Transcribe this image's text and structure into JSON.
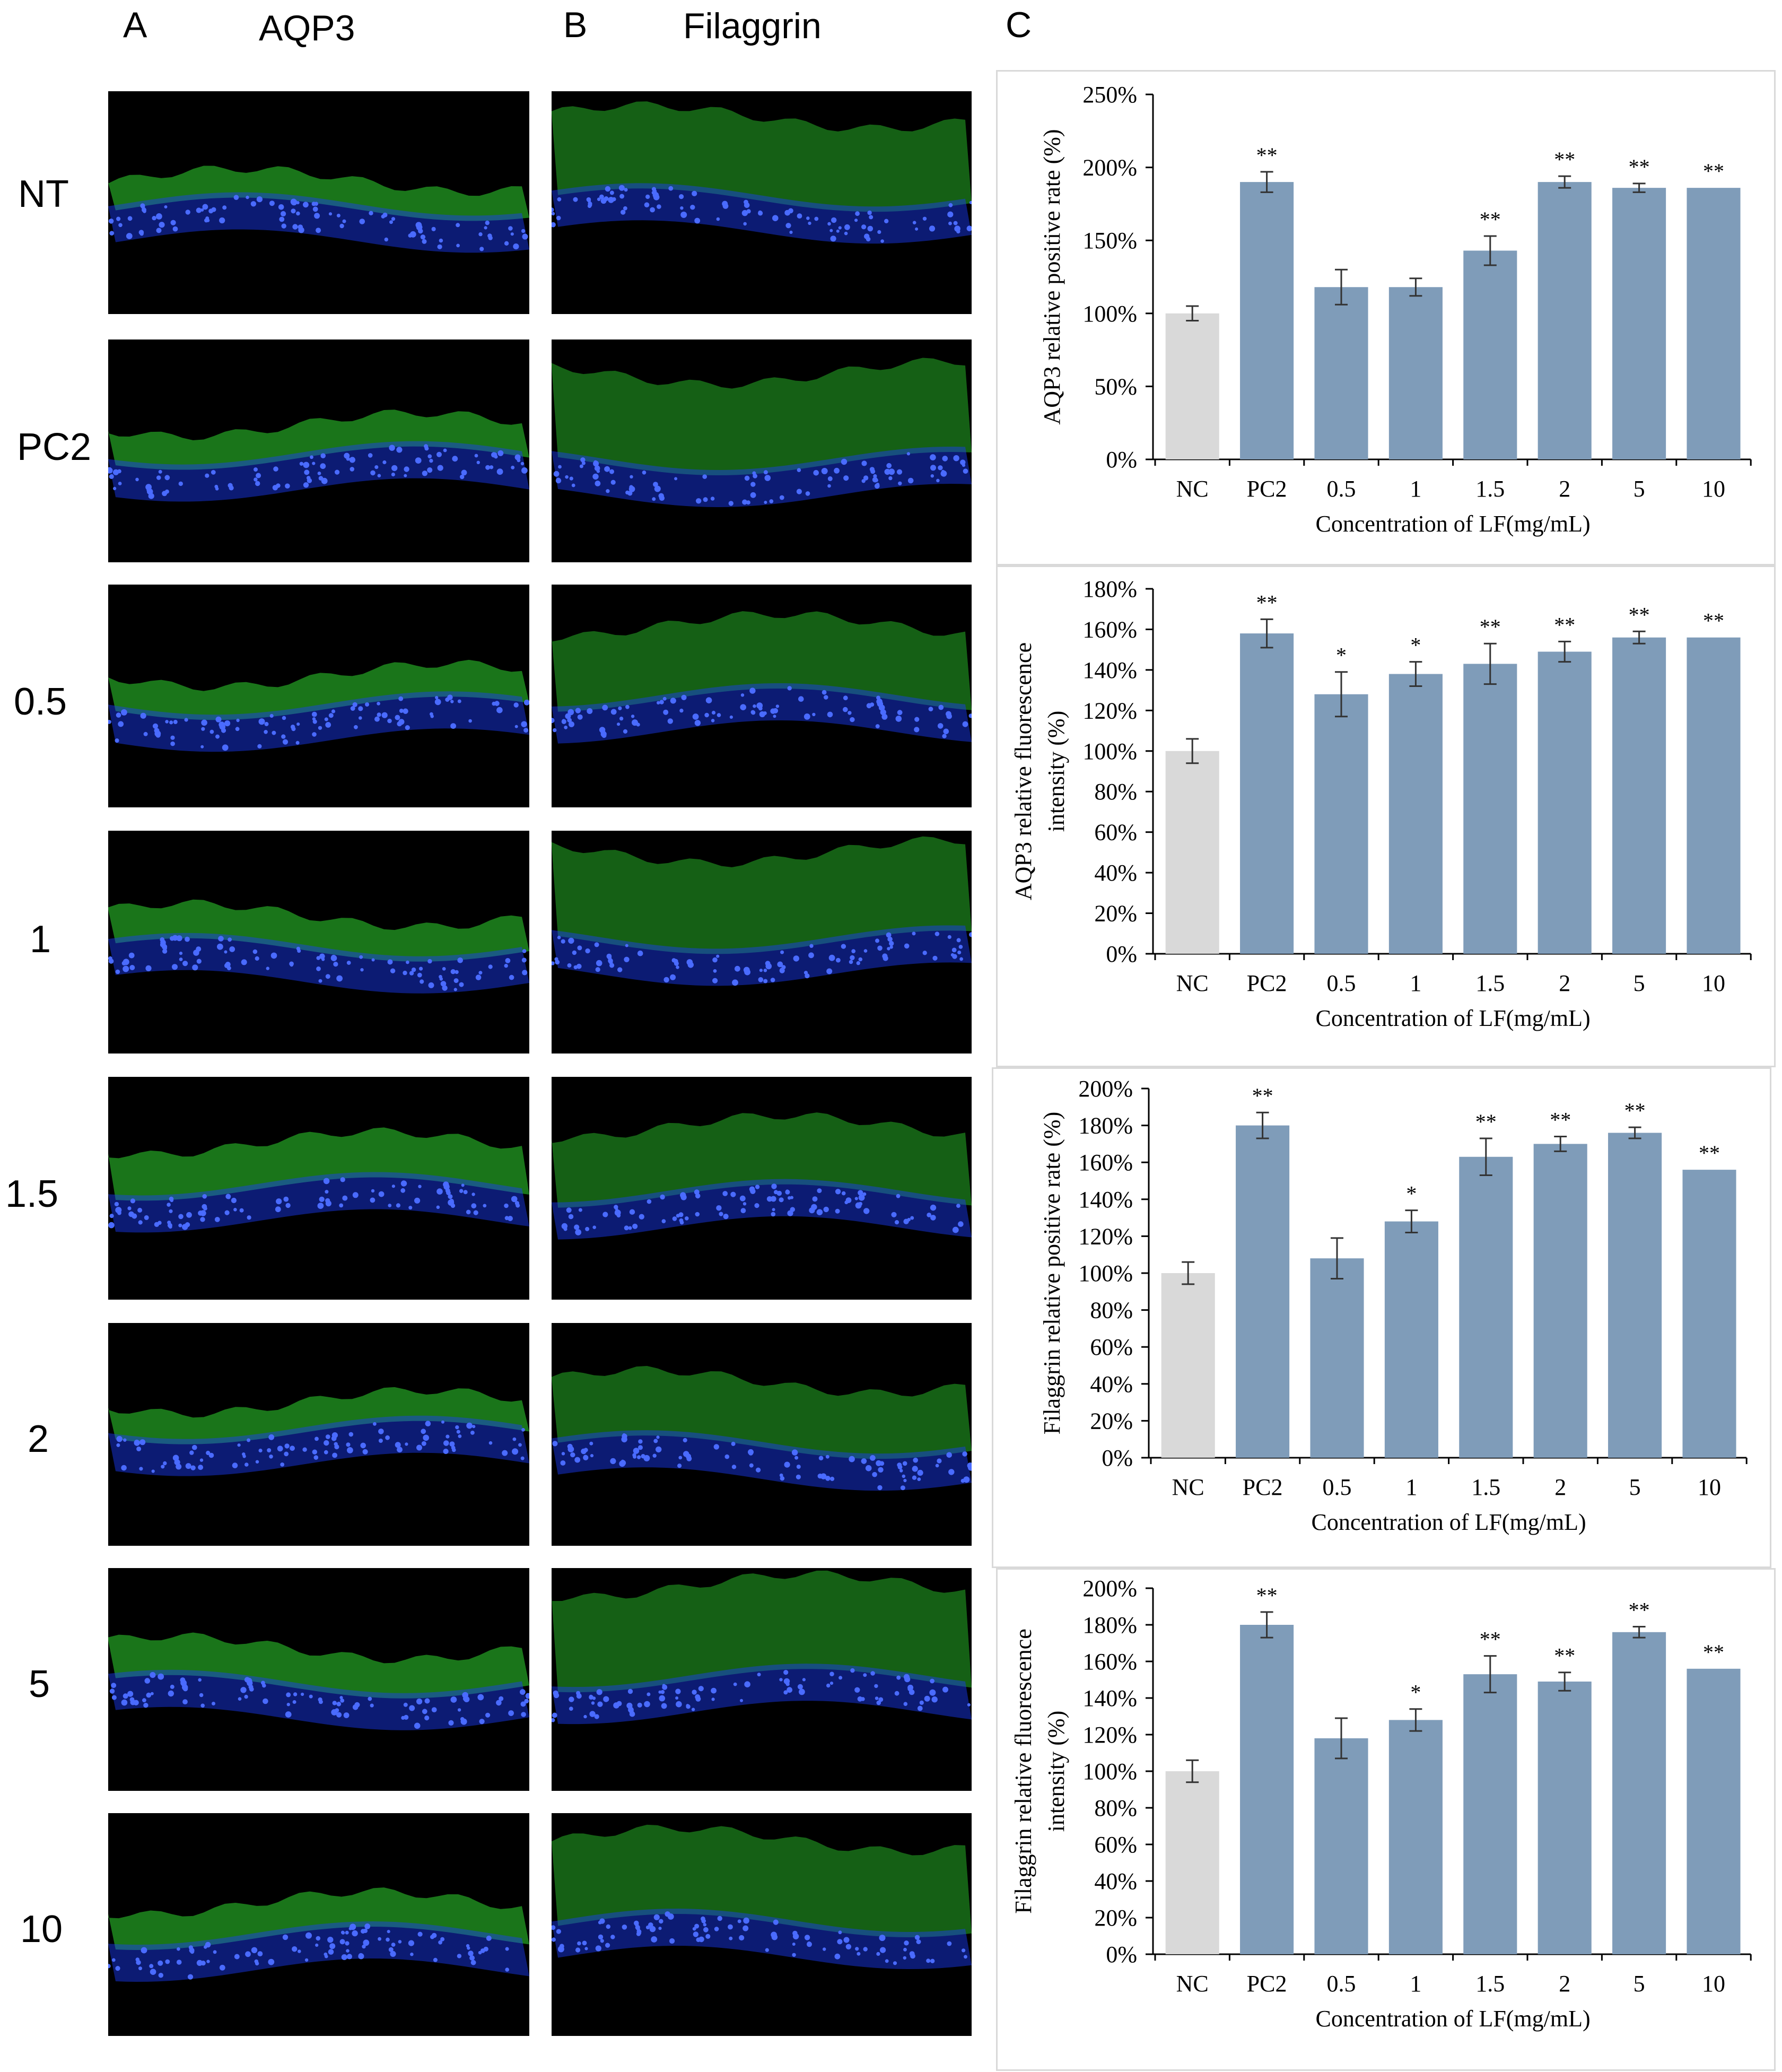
{
  "panels": {
    "a": "A",
    "b": "B",
    "c": "C"
  },
  "columns": {
    "a_title": "AQP3",
    "b_title": "Filaggrin"
  },
  "rows": [
    "NT",
    "PC2",
    "0.5",
    "1",
    "1.5",
    "2",
    "5",
    "10"
  ],
  "colors": {
    "nc_bar": "#d9d9d9",
    "bar": "#7f9cb9",
    "nuclei": "#1a3cff",
    "stain": "#2fd52f"
  },
  "chart_data": [
    {
      "type": "bar",
      "categories": [
        "NC",
        "PC2",
        "0.5",
        "1",
        "1.5",
        "2",
        "5",
        "10"
      ],
      "values": [
        100,
        190,
        118,
        118,
        143,
        190,
        186,
        186
      ],
      "errors": [
        5,
        7,
        12,
        6,
        10,
        4,
        3,
        0
      ],
      "significance": [
        "",
        "**",
        "",
        "",
        "**",
        "**",
        "**",
        "**"
      ],
      "ylabel_lines": [
        "AQP3 relative positive rate (%)"
      ],
      "xlabel": "Concentration of LF(mg/mL)",
      "ylim": [
        0,
        250
      ],
      "yticks": [
        "0%",
        "50%",
        "100%",
        "150%",
        "200%",
        "250%"
      ]
    },
    {
      "type": "bar",
      "categories": [
        "NC",
        "PC2",
        "0.5",
        "1",
        "1.5",
        "2",
        "5",
        "10"
      ],
      "values": [
        100,
        158,
        128,
        138,
        143,
        149,
        156,
        156
      ],
      "errors": [
        6,
        7,
        11,
        6,
        10,
        5,
        3,
        0
      ],
      "significance": [
        "",
        "**",
        "*",
        "*",
        "**",
        "**",
        "**",
        "**"
      ],
      "ylabel_lines": [
        "AQP3 relative fluorescence",
        "intensity (%)"
      ],
      "xlabel": "Concentration of LF(mg/mL)",
      "ylim": [
        0,
        180
      ],
      "yticks": [
        "0%",
        "20%",
        "40%",
        "60%",
        "80%",
        "100%",
        "120%",
        "140%",
        "160%",
        "180%"
      ]
    },
    {
      "type": "bar",
      "categories": [
        "NC",
        "PC2",
        "0.5",
        "1",
        "1.5",
        "2",
        "5",
        "10"
      ],
      "values": [
        100,
        180,
        108,
        128,
        163,
        170,
        176,
        156
      ],
      "errors": [
        6,
        7,
        11,
        6,
        10,
        4,
        3,
        0
      ],
      "significance": [
        "",
        "**",
        "",
        "*",
        "**",
        "**",
        "**",
        "**"
      ],
      "ylabel_lines": [
        "Filaggrin  relative positive rate (%)"
      ],
      "xlabel": "Concentration of LF(mg/mL)",
      "ylim": [
        0,
        200
      ],
      "yticks": [
        "0%",
        "20%",
        "40%",
        "60%",
        "80%",
        "100%",
        "120%",
        "140%",
        "160%",
        "180%",
        "200%"
      ]
    },
    {
      "type": "bar",
      "categories": [
        "NC",
        "PC2",
        "0.5",
        "1",
        "1.5",
        "2",
        "5",
        "10"
      ],
      "values": [
        100,
        180,
        118,
        128,
        153,
        149,
        176,
        156
      ],
      "errors": [
        6,
        7,
        11,
        6,
        10,
        5,
        3,
        0
      ],
      "significance": [
        "",
        "**",
        "",
        "*",
        "**",
        "**",
        "**",
        "**"
      ],
      "ylabel_lines": [
        "Filaggrin  relative fluorescence",
        "intensity (%)"
      ],
      "xlabel": "Concentration of LF(mg/mL)",
      "ylim": [
        0,
        200
      ],
      "yticks": [
        "0%",
        "20%",
        "40%",
        "60%",
        "80%",
        "100%",
        "120%",
        "140%",
        "160%",
        "180%",
        "200%"
      ]
    }
  ]
}
